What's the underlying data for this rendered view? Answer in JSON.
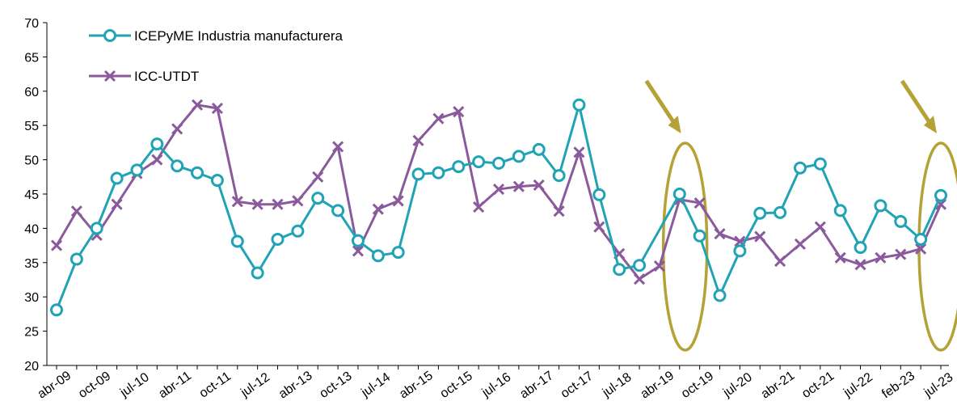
{
  "chart_data": {
    "type": "line",
    "title": "",
    "xlabel": "",
    "ylabel": "",
    "ylim": [
      20,
      70
    ],
    "yticks": [
      20,
      25,
      30,
      35,
      40,
      45,
      50,
      55,
      60,
      65,
      70
    ],
    "grid": false,
    "legend_position": "top-left",
    "tick_labels": [
      "abr-09",
      "oct-09",
      "jul-10",
      "abr-11",
      "oct-11",
      "jul-12",
      "abr-13",
      "oct-13",
      "jul-14",
      "abr-15",
      "oct-15",
      "jul-16",
      "abr-17",
      "oct-17",
      "jul-18",
      "abr-19",
      "oct-19",
      "jul-20",
      "abr-21",
      "oct-21",
      "jul-22",
      "feb-23",
      "jul-23"
    ],
    "series": [
      {
        "name": "ICEPyME Industria manufacturera",
        "color": "#1FA3B5",
        "marker": "circle",
        "values": [
          28.1,
          35.5,
          40.0,
          47.3,
          48.5,
          52.3,
          49.1,
          48.1,
          47.0,
          38.1,
          33.5,
          38.4,
          39.6,
          44.4,
          42.6,
          38.2,
          36.0,
          36.5,
          47.9,
          48.1,
          49.0,
          49.7,
          49.5,
          50.5,
          51.5,
          47.7,
          58.0,
          44.9,
          34.0,
          34.6,
          null,
          45.0,
          38.9,
          30.2,
          36.7,
          42.2,
          42.3,
          48.8,
          49.4,
          42.6,
          37.2,
          43.3,
          41.0,
          38.4,
          44.8
        ]
      },
      {
        "name": "ICC-UTDT",
        "color": "#8B5A9C",
        "marker": "x",
        "values": [
          37.5,
          42.5,
          39.0,
          43.5,
          48.0,
          50.0,
          54.5,
          58.0,
          57.5,
          43.9,
          43.5,
          43.5,
          44.0,
          47.5,
          51.9,
          36.7,
          42.8,
          44.0,
          52.8,
          56.0,
          57.0,
          43.1,
          45.7,
          46.1,
          46.3,
          42.5,
          51.1,
          40.2,
          36.3,
          32.6,
          34.5,
          44.2,
          43.7,
          39.2,
          38.1,
          38.8,
          35.2,
          37.7,
          40.2,
          35.7,
          34.7,
          35.7,
          36.2,
          37.0,
          43.5
        ]
      }
    ],
    "annotations": [
      {
        "type": "ellipse-highlight",
        "color": "#B5A236",
        "around": "oct-19"
      },
      {
        "type": "ellipse-highlight",
        "color": "#B5A236",
        "around": "jul-23"
      }
    ]
  }
}
